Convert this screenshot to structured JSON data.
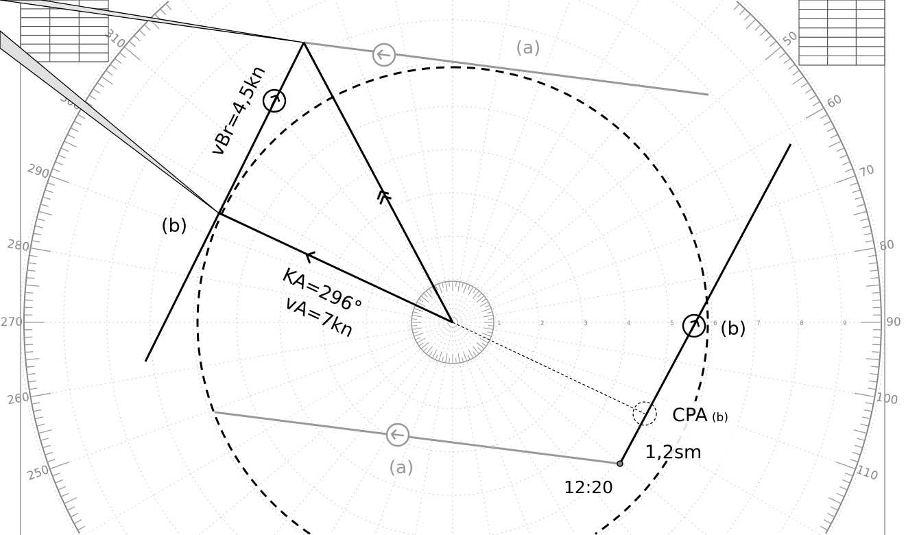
{
  "compass": {
    "bearing_labels_left": [
      "250",
      "260",
      "270",
      "280",
      "290",
      "300",
      "310"
    ],
    "bearing_labels_right": [
      "50",
      "60",
      "70",
      "80",
      "90",
      "100",
      "110"
    ],
    "range_labels": [
      "1",
      "2",
      "3",
      "4",
      "5",
      "6",
      "7",
      "8",
      "9"
    ]
  },
  "labels": {
    "vbr": "vBr=4,5kn",
    "b_left": "(b)",
    "ka": "KA=296°",
    "va": "vA=7kn",
    "b_right": "(b)",
    "cpa": "CPA",
    "cpa_sub": "(b)",
    "cpa_dist": "1,2sm",
    "time": "12:20",
    "a_top": "(a)",
    "a_bottom": "(a)"
  },
  "colors": {
    "vector": "#000000",
    "track_a": "#999999",
    "grid": "#aaaaaa"
  }
}
